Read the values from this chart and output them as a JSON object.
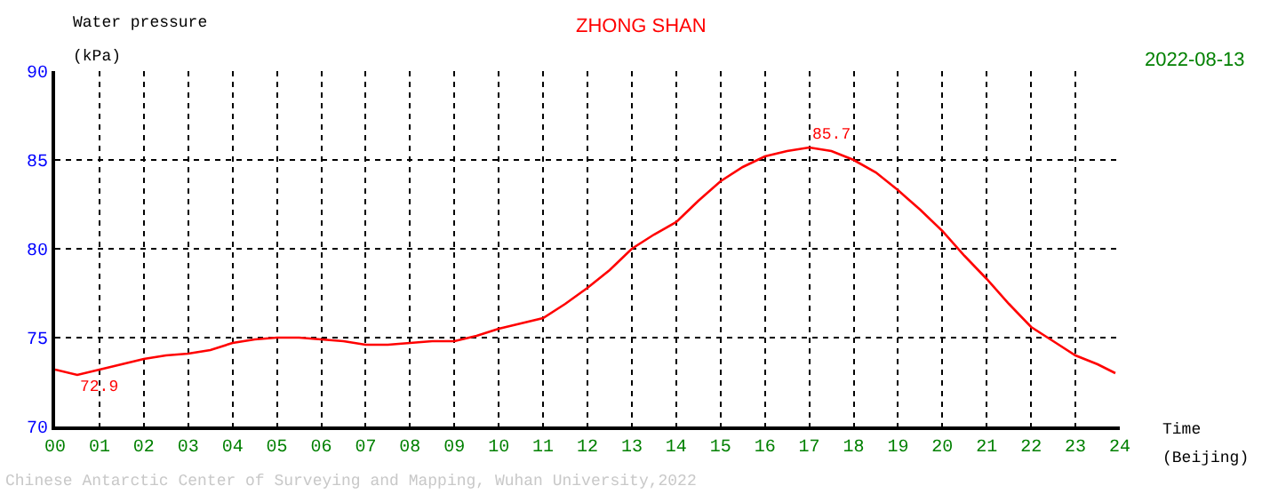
{
  "chart_data": {
    "type": "line",
    "title": "ZHONG SHAN",
    "subtitle": "2022-08-13",
    "ylabel": "Water pressure (kPa)",
    "xlabel": "Time (Beijing)",
    "x": [
      0,
      0.5,
      1,
      1.5,
      2,
      2.5,
      3,
      3.5,
      4,
      4.5,
      5,
      5.5,
      6,
      6.5,
      7,
      7.5,
      8,
      8.5,
      9,
      9.5,
      10,
      10.5,
      11,
      11.5,
      12,
      12.5,
      13,
      13.5,
      14,
      14.5,
      15,
      15.5,
      16,
      16.5,
      17,
      17.5,
      18,
      18.5,
      19,
      19.5,
      20,
      20.5,
      21,
      21.5,
      22,
      22.5,
      23,
      23.5,
      23.9
    ],
    "series": [
      {
        "color": "#ff0000",
        "values": [
          73.2,
          72.9,
          73.2,
          73.5,
          73.8,
          74.0,
          74.1,
          74.3,
          74.7,
          74.9,
          75.0,
          75.0,
          74.9,
          74.8,
          74.6,
          74.6,
          74.7,
          74.8,
          74.8,
          75.1,
          75.5,
          75.8,
          76.1,
          76.9,
          77.8,
          78.8,
          80.0,
          80.8,
          81.5,
          82.7,
          83.8,
          84.6,
          85.2,
          85.5,
          85.7,
          85.5,
          85.0,
          84.3,
          83.3,
          82.2,
          81.0,
          79.6,
          78.3,
          76.9,
          75.6,
          74.8,
          74.0,
          73.5,
          73.0
        ]
      }
    ],
    "xlim": [
      0,
      24
    ],
    "xticks": [
      {
        "value": 0,
        "label": "00"
      },
      {
        "value": 1,
        "label": "01"
      },
      {
        "value": 2,
        "label": "02"
      },
      {
        "value": 3,
        "label": "03"
      },
      {
        "value": 4,
        "label": "04"
      },
      {
        "value": 5,
        "label": "05"
      },
      {
        "value": 6,
        "label": "06"
      },
      {
        "value": 7,
        "label": "07"
      },
      {
        "value": 8,
        "label": "08"
      },
      {
        "value": 9,
        "label": "09"
      },
      10,
      11,
      12,
      13,
      14,
      15,
      16,
      17,
      18,
      19,
      20,
      21,
      22,
      23,
      24
    ],
    "ylim": [
      70,
      90
    ],
    "yticks": [
      70,
      75,
      80,
      85,
      90
    ],
    "grid": true,
    "line_style": "solid",
    "marker": "none",
    "legend": false,
    "annotations": [
      {
        "text": "72.9",
        "x": 0.5,
        "y": 72.9
      },
      {
        "text": "85.7",
        "x": 17,
        "y": 85.7
      },
      "Chinese Antarctic Center of Surveying and Mapping, Wuhan University,2022"
    ]
  }
}
